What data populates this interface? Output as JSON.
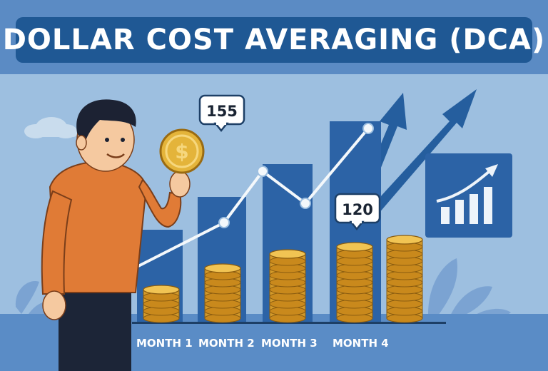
{
  "title": "DOLLAR COST AVERAGING (DCA)",
  "months": [
    "MONTH 1",
    "MONTH 2",
    "MONTH 3",
    "MONTH 4"
  ],
  "callouts": [
    {
      "label": "155"
    },
    {
      "label": "120"
    }
  ],
  "coin_symbol": "$",
  "colors": {
    "background": "#9dbfe0",
    "title_bar": "#5b8bc4",
    "title_pill": "#1f5894",
    "bars": "#2c63a6",
    "arrow": "#255e9e",
    "line": "#f4f8fb",
    "coin": "#e4b43a",
    "shirt": "#e07b36",
    "ground": "#5a8cc6"
  },
  "icons": [
    "dollar-coin-icon",
    "growth-chart-icon",
    "cloud-icon"
  ]
}
